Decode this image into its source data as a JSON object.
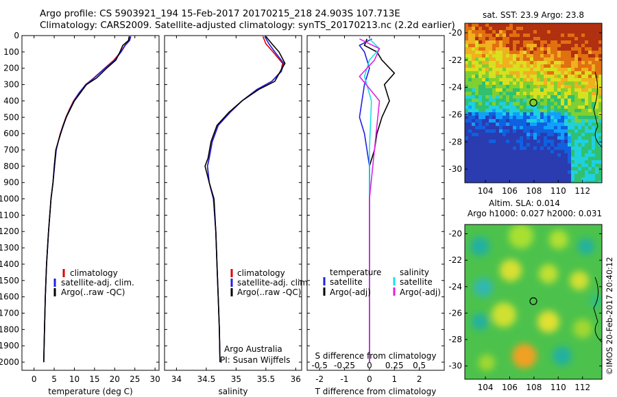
{
  "header": {
    "line1": "Argo profile: CS 5903921_194 15-Feb-2017 20170215_218 24.903S 107.713E",
    "line2": "Climatology: CARS2009. Satellite-adjusted climatology: synTS_20170213.nc (2.2d earlier)"
  },
  "colors": {
    "climatology": "#e00000",
    "satellite": "#1f1fe0",
    "argo": "#000000",
    "satellite_salinity": "#18e0e8",
    "argo_salinity": "#e020e0"
  },
  "depth_axis": {
    "range": [
      0,
      2050
    ],
    "ticks": [
      "0",
      "100",
      "200",
      "300",
      "400",
      "500",
      "600",
      "700",
      "800",
      "900",
      "1000",
      "1100",
      "1200",
      "1300",
      "1400",
      "1500",
      "1600",
      "1700",
      "1800",
      "1900",
      "2000"
    ]
  },
  "temperature_panel": {
    "xlabel": "temperature (deg C)",
    "xticks": [
      "0",
      "5",
      "10",
      "15",
      "20",
      "25",
      "30"
    ],
    "legend": [
      "climatology",
      "satellite-adj. clim.",
      "Argo(..raw -QC)"
    ]
  },
  "salinity_panel": {
    "xlabel": "salinity",
    "xticks": [
      "34",
      "34.5",
      "35",
      "35.5",
      "36"
    ],
    "legend": [
      "climatology",
      "satellite-adj. clim.",
      "Argo(..raw -QC)"
    ],
    "note1": "Argo Australia",
    "note2": "PI: Susan Wijffels"
  },
  "difference_panel": {
    "xlabel": "T difference from climatology",
    "xticks": [
      "-2",
      "-1",
      "0",
      "1",
      "2"
    ],
    "top_label": "S difference from climatology",
    "top_ticks": [
      "-0.5",
      "-0.25",
      "0",
      "0.25",
      "0.5"
    ],
    "legend_temp_title": "temperature",
    "legend_sal_title": "salinity",
    "legend_temp": [
      "satellite",
      "Argo(-adj)"
    ],
    "legend_sal": [
      "satellite",
      "Argo(-adj)"
    ]
  },
  "sst_map": {
    "title": "sat. SST: 23.9  Argo: 23.8",
    "yticks": [
      "-20",
      "-22",
      "-24",
      "-26",
      "-28",
      "-30"
    ],
    "xticks": [
      "104",
      "106",
      "108",
      "110",
      "112"
    ]
  },
  "sla_map": {
    "title1": "Altim. SLA: 0.014",
    "title2": "Argo h1000: 0.027 h2000: 0.031",
    "yticks": [
      "-20",
      "-22",
      "-24",
      "-26",
      "-28",
      "-30"
    ],
    "xticks": [
      "104",
      "106",
      "108",
      "110",
      "112"
    ]
  },
  "credit": "©IMOS 20-Feb-2017 20:40:12",
  "chart_data": [
    {
      "type": "line",
      "panel": "temperature",
      "ylabel": "depth",
      "xlim": [
        -3,
        31
      ],
      "ylim": [
        2050,
        0
      ],
      "series": [
        {
          "name": "climatology",
          "x": [
            23.8,
            23.5,
            22.5,
            21.5,
            19.8,
            17.5,
            14.8,
            12.8,
            11.2,
            9.8,
            8.8,
            7.9,
            7.2,
            6.5,
            6.0,
            5.5,
            5.1,
            4.7,
            4.2,
            3.6,
            3.1,
            2.8,
            2.6,
            2.4
          ],
          "y": [
            5,
            30,
            60,
            100,
            150,
            200,
            260,
            300,
            350,
            400,
            450,
            500,
            550,
            600,
            650,
            700,
            800,
            900,
            1000,
            1200,
            1400,
            1600,
            1800,
            2000
          ]
        },
        {
          "name": "satellite-adj. clim.",
          "x": [
            24.0,
            23.7,
            22.6,
            21.6,
            20.0,
            17.6,
            14.9,
            12.9,
            11.2,
            9.9,
            8.9,
            8.0,
            7.3,
            6.6,
            6.0,
            5.5,
            5.1,
            4.7,
            4.2,
            3.6,
            3.1,
            2.8,
            2.6,
            2.4
          ],
          "y": [
            5,
            30,
            60,
            100,
            150,
            200,
            260,
            300,
            350,
            400,
            450,
            500,
            550,
            600,
            650,
            700,
            800,
            900,
            1000,
            1200,
            1400,
            1600,
            1800,
            2000
          ]
        },
        {
          "name": "Argo(..raw -QC)",
          "x": [
            23.6,
            23.4,
            22.0,
            21.3,
            20.3,
            18.0,
            15.5,
            13.0,
            11.5,
            10.0,
            9.0,
            8.0,
            7.2,
            6.6,
            6.0,
            5.4,
            5.0,
            4.7,
            4.2,
            3.6,
            3.1,
            2.8,
            2.6,
            2.4
          ],
          "y": [
            5,
            30,
            60,
            100,
            150,
            200,
            260,
            300,
            350,
            400,
            450,
            500,
            550,
            600,
            650,
            700,
            800,
            900,
            1000,
            1200,
            1400,
            1600,
            1800,
            2000
          ]
        }
      ]
    },
    {
      "type": "line",
      "panel": "salinity",
      "xlim": [
        33.8,
        36.1
      ],
      "ylim": [
        2050,
        0
      ],
      "series": [
        {
          "name": "climatology",
          "x": [
            35.45,
            35.5,
            35.62,
            35.78,
            35.75,
            35.6,
            35.35,
            35.1,
            34.9,
            34.7,
            34.6,
            34.55,
            34.52,
            34.55,
            34.62,
            34.66,
            34.68,
            34.7,
            34.72,
            34.73
          ],
          "y": [
            5,
            50,
            100,
            170,
            220,
            280,
            330,
            400,
            470,
            550,
            650,
            750,
            800,
            900,
            1000,
            1200,
            1400,
            1600,
            1800,
            2000
          ]
        },
        {
          "name": "satellite-adj. clim.",
          "x": [
            35.48,
            35.55,
            35.65,
            35.8,
            35.76,
            35.6,
            35.35,
            35.1,
            34.9,
            34.7,
            34.6,
            34.55,
            34.52,
            34.55,
            34.62,
            34.66,
            34.68,
            34.7,
            34.72,
            34.73
          ],
          "y": [
            5,
            50,
            100,
            170,
            220,
            280,
            330,
            400,
            470,
            550,
            650,
            750,
            800,
            900,
            1000,
            1200,
            1400,
            1600,
            1800,
            2000
          ]
        },
        {
          "name": "Argo(..raw -QC)",
          "x": [
            35.5,
            35.6,
            35.72,
            35.82,
            35.74,
            35.65,
            35.38,
            35.1,
            34.88,
            34.68,
            34.58,
            34.53,
            34.48,
            34.55,
            34.63,
            34.66,
            34.68,
            34.7,
            34.72,
            34.73
          ],
          "y": [
            5,
            50,
            100,
            170,
            220,
            280,
            330,
            400,
            470,
            550,
            650,
            750,
            800,
            900,
            1000,
            1200,
            1400,
            1600,
            1800,
            2000
          ]
        }
      ]
    },
    {
      "type": "line",
      "panel": "difference",
      "xlim": [
        -2.5,
        3.0
      ],
      "ylim": [
        2050,
        0
      ],
      "series": [
        {
          "name": "temperature satellite",
          "x": [
            0.1,
            -0.4,
            -0.2,
            -0.1,
            0.0,
            -0.2,
            -0.3,
            -0.4,
            -0.2,
            -0.1,
            0.0,
            0.0,
            0.0,
            0.0,
            0.0
          ],
          "y": [
            20,
            60,
            100,
            150,
            200,
            300,
            400,
            500,
            600,
            700,
            800,
            1000,
            1400,
            1800,
            2000
          ]
        },
        {
          "name": "temperature Argo(-adj)",
          "x": [
            -0.1,
            -0.2,
            0.3,
            0.5,
            1.0,
            0.6,
            0.8,
            0.5,
            0.3,
            0.2,
            0.0,
            0.0,
            0.0,
            0.0,
            0.0
          ],
          "y": [
            20,
            60,
            100,
            150,
            230,
            300,
            400,
            500,
            600,
            700,
            800,
            1000,
            1400,
            1800,
            2000
          ]
        },
        {
          "name": "salinity satellite",
          "x": [
            0.0,
            0.1,
            0.0,
            -0.05,
            0.02,
            0.0,
            0.0,
            0.0,
            0.0
          ],
          "y": [
            20,
            80,
            150,
            250,
            400,
            700,
            1000,
            1500,
            2000
          ]
        },
        {
          "name": "salinity Argo(-adj)",
          "x": [
            -0.1,
            0.1,
            0.05,
            -0.1,
            0.1,
            0.05,
            0.0,
            0.0,
            0.0
          ],
          "y": [
            20,
            80,
            150,
            250,
            400,
            700,
            1000,
            1500,
            2000
          ]
        }
      ]
    }
  ]
}
